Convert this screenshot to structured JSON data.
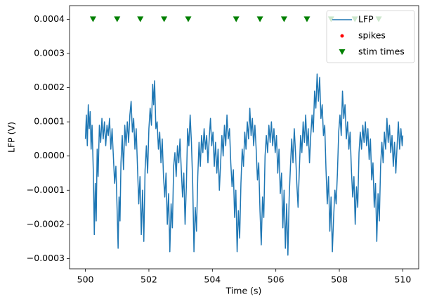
{
  "chart_data": {
    "type": "line",
    "xlabel": "Time (s)",
    "ylabel": "LFP (V)",
    "xlim": [
      499.5,
      510.5
    ],
    "xticks": [
      500,
      502,
      504,
      506,
      508,
      510
    ],
    "ylim": [
      -0.00033,
      0.00044
    ],
    "yticks": [
      {
        "value": -0.0003,
        "label": "−0.0003"
      },
      {
        "value": -0.0002,
        "label": "−0.0002"
      },
      {
        "value": -0.0001,
        "label": "−0.0001"
      },
      {
        "value": 0,
        "label": "0.0000"
      },
      0.0001,
      0.0002,
      0.0003,
      0.0004
    ],
    "legend": "upper right",
    "series": [
      {
        "name": "LFP",
        "color": "#1f77b4",
        "style": "line",
        "x": [
          500.0,
          500.03,
          500.06,
          500.09,
          500.12,
          500.15,
          500.18,
          500.21,
          500.25,
          500.28,
          500.31,
          500.34,
          500.37,
          500.4,
          500.44,
          500.48,
          500.52,
          500.56,
          500.6,
          500.64,
          500.68,
          500.72,
          500.76,
          500.8,
          500.84,
          500.88,
          500.92,
          500.96,
          501.0,
          501.03,
          501.06,
          501.09,
          501.12,
          501.16,
          501.2,
          501.24,
          501.28,
          501.32,
          501.36,
          501.4,
          501.44,
          501.48,
          501.52,
          501.56,
          501.6,
          501.64,
          501.68,
          501.72,
          501.76,
          501.8,
          501.84,
          501.88,
          501.92,
          501.96,
          502.0,
          502.04,
          502.08,
          502.12,
          502.15,
          502.18,
          502.22,
          502.26,
          502.3,
          502.34,
          502.38,
          502.42,
          502.46,
          502.5,
          502.54,
          502.58,
          502.62,
          502.66,
          502.7,
          502.74,
          502.78,
          502.82,
          502.86,
          502.9,
          502.94,
          502.98,
          503.02,
          503.06,
          503.1,
          503.14,
          503.18,
          503.22,
          503.26,
          503.3,
          503.34,
          503.38,
          503.42,
          503.46,
          503.5,
          503.54,
          503.58,
          503.62,
          503.66,
          503.7,
          503.74,
          503.78,
          503.82,
          503.86,
          503.9,
          503.94,
          503.98,
          504.02,
          504.06,
          504.1,
          504.14,
          504.18,
          504.22,
          504.26,
          504.3,
          504.34,
          504.38,
          504.42,
          504.46,
          504.5,
          504.54,
          504.58,
          504.62,
          504.66,
          504.7,
          504.74,
          504.78,
          504.82,
          504.86,
          504.9,
          504.94,
          504.98,
          505.02,
          505.06,
          505.1,
          505.14,
          505.18,
          505.22,
          505.26,
          505.3,
          505.34,
          505.38,
          505.42,
          505.46,
          505.5,
          505.54,
          505.58,
          505.62,
          505.66,
          505.7,
          505.74,
          505.78,
          505.82,
          505.86,
          505.9,
          505.94,
          505.98,
          506.02,
          506.06,
          506.1,
          506.14,
          506.18,
          506.22,
          506.26,
          506.3,
          506.34,
          506.38,
          506.42,
          506.46,
          506.5,
          506.54,
          506.58,
          506.62,
          506.66,
          506.7,
          506.74,
          506.78,
          506.82,
          506.86,
          506.9,
          506.94,
          506.98,
          507.02,
          507.06,
          507.1,
          507.14,
          507.18,
          507.22,
          507.26,
          507.3,
          507.34,
          507.38,
          507.42,
          507.46,
          507.5,
          507.54,
          507.58,
          507.62,
          507.66,
          507.7,
          507.74,
          507.78,
          507.82,
          507.86,
          507.9,
          507.94,
          507.98,
          508.02,
          508.06,
          508.1,
          508.14,
          508.18,
          508.22,
          508.26,
          508.3,
          508.34,
          508.38,
          508.42,
          508.46,
          508.5,
          508.54,
          508.58,
          508.62,
          508.66,
          508.7,
          508.74,
          508.78,
          508.82,
          508.86,
          508.9,
          508.94,
          508.98,
          509.02,
          509.06,
          509.1,
          509.14,
          509.18,
          509.22,
          509.26,
          509.3,
          509.34,
          509.38,
          509.42,
          509.46,
          509.5,
          509.54,
          509.58,
          509.62,
          509.66,
          509.7,
          509.74,
          509.78,
          509.82,
          509.86,
          509.9,
          509.94,
          509.98,
          510.0
        ],
        "values": [
          5e-05,
          0.00012,
          3e-05,
          0.00015,
          8e-05,
          0.00013,
          2e-05,
          9e-05,
          -5e-05,
          -0.00023,
          -8e-05,
          -0.00019,
          2e-05,
          -6e-05,
          9e-05,
          4e-05,
          0.00011,
          5e-05,
          0.0001,
          3e-05,
          9e-05,
          6e-05,
          0.00011,
          2e-05,
          8e-05,
          0.0,
          -8e-05,
          -3e-05,
          -0.00016,
          -0.00027,
          -0.00012,
          -0.00019,
          -2e-05,
          6e-05,
          -4e-05,
          9e-05,
          3e-05,
          0.0001,
          4e-05,
          0.00012,
          0.00016,
          7e-05,
          0.00011,
          2e-05,
          8e-05,
          -3e-05,
          -0.00014,
          -6e-05,
          -0.00023,
          -0.0001,
          -0.00025,
          -4e-05,
          3e-05,
          -5e-05,
          8e-05,
          0.00014,
          9e-05,
          0.00021,
          0.00015,
          0.00022,
          8e-05,
          0.0001,
          2e-05,
          7e-05,
          -2e-05,
          5e-05,
          -6e-05,
          -0.00012,
          -5e-05,
          -0.0002,
          -0.00011,
          -0.00028,
          -0.00014,
          -0.00021,
          -3e-05,
          1e-05,
          -6e-05,
          3e-05,
          -2e-05,
          5e-05,
          -4e-05,
          -0.00012,
          -5e-05,
          -0.0002,
          -9e-05,
          8e-05,
          3e-05,
          0.00012,
          4e-05,
          -8e-05,
          -0.00028,
          -0.00015,
          -0.00022,
          -6e-05,
          4e-05,
          -3e-05,
          6e-05,
          1e-05,
          8e-05,
          2e-05,
          6e-05,
          -2e-05,
          5e-05,
          0.00011,
          3e-05,
          7e-05,
          -3e-05,
          4e-05,
          -5e-05,
          2e-05,
          -0.0001,
          -2e-05,
          6e-05,
          0.0,
          9e-05,
          3e-05,
          0.00012,
          5e-05,
          8e-05,
          -2e-05,
          -9e-05,
          -4e-05,
          -0.00018,
          -0.0001,
          -0.00028,
          -0.00016,
          -0.00024,
          -8e-05,
          2e-05,
          -3e-05,
          7e-05,
          2e-05,
          0.0001,
          5e-05,
          0.00014,
          6e-05,
          0.00011,
          3e-05,
          9e-05,
          2e-05,
          -7e-05,
          -2e-05,
          -0.00016,
          -0.00026,
          -0.00012,
          -0.00018,
          0.0,
          6e-05,
          1e-05,
          9e-05,
          4e-05,
          0.0001,
          3e-05,
          8e-05,
          1e-05,
          6e-05,
          -5e-05,
          2e-05,
          -0.00011,
          -5e-05,
          -0.00021,
          -0.0001,
          -0.00027,
          -0.00014,
          -0.00029,
          -0.00012,
          -3e-05,
          5e-05,
          -2e-05,
          8e-05,
          1e-05,
          -8e-05,
          -0.00015,
          -4e-05,
          6e-05,
          1e-05,
          0.0001,
          4e-05,
          0.00012,
          3e-05,
          8e-05,
          -2e-05,
          6e-05,
          0.00012,
          7e-05,
          0.00019,
          0.00014,
          0.00024,
          0.00016,
          0.00023,
          0.00011,
          0.00015,
          6e-05,
          9e-05,
          -4e-05,
          -0.00014,
          -6e-05,
          -0.00022,
          -0.00012,
          -0.00028,
          -0.00018,
          -0.0001,
          -0.00014,
          -5e-05,
          7e-05,
          0.00012,
          6e-05,
          0.00019,
          0.00011,
          0.00015,
          5e-05,
          0.0001,
          2e-05,
          7e-05,
          -4e-05,
          -0.00012,
          -6e-05,
          -0.0002,
          -9e-05,
          -0.00015,
          1e-05,
          7e-05,
          2e-05,
          9e-05,
          4e-05,
          0.0001,
          3e-05,
          8e-05,
          -1e-05,
          5e-05,
          -7e-05,
          -2e-05,
          -0.00015,
          -8e-05,
          -0.00025,
          -0.00011,
          -0.00019,
          -3e-05,
          4e-05,
          -2e-05,
          7e-05,
          2e-05,
          0.00011,
          4e-05,
          9e-05,
          1e-05,
          6e-05,
          -3e-05,
          4e-05,
          -5e-05,
          3e-05,
          0.0001,
          2e-05,
          8e-05,
          3e-05,
          6e-05
        ]
      },
      {
        "name": "spikes",
        "color": "#ff0000",
        "style": "dot",
        "x": [],
        "values": []
      },
      {
        "name": "stim times",
        "color": "#008000",
        "style": "triangle-down",
        "x": [
          500.24,
          501.0,
          501.73,
          502.48,
          503.24,
          504.75,
          505.5,
          506.26,
          506.98,
          507.74,
          508.49,
          509.24
        ],
        "values": [
          0.0004,
          0.0004,
          0.0004,
          0.0004,
          0.0004,
          0.0004,
          0.0004,
          0.0004,
          0.0004,
          0.0004,
          0.0004,
          0.0004
        ]
      }
    ]
  }
}
